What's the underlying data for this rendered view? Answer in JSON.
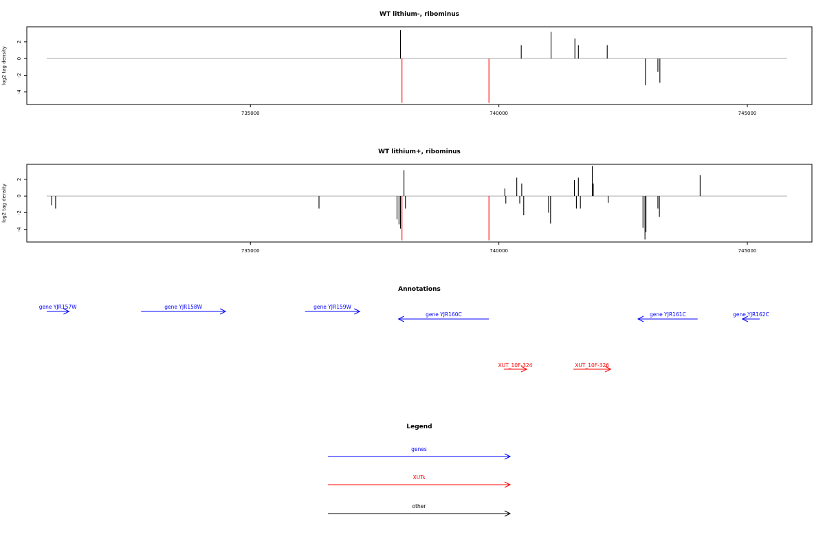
{
  "chart_data": [
    {
      "type": "bar",
      "title": "WT lithium-, ribominus",
      "ylabel": "log2 tag density",
      "xlim": [
        730500,
        746300
      ],
      "ylim": [
        -5.5,
        3.8
      ],
      "xticks": [
        735000,
        740000,
        745000
      ],
      "yticks": [
        -4,
        -2,
        0,
        2
      ],
      "baseline": {
        "x": [
          730900,
          745800
        ],
        "y": 0
      },
      "series": [
        {
          "color": "#000000",
          "bars": [
            {
              "x": 738020,
              "y": 3.4
            },
            {
              "x": 740450,
              "y": 1.6
            },
            {
              "x": 741050,
              "y": 3.2
            },
            {
              "x": 741530,
              "y": 2.4
            },
            {
              "x": 741600,
              "y": 1.6
            },
            {
              "x": 742180,
              "y": 1.6
            },
            {
              "x": 742950,
              "y": -3.2
            },
            {
              "x": 743200,
              "y": -1.6
            },
            {
              "x": 743240,
              "y": -2.9
            }
          ]
        },
        {
          "color": "#ff0000",
          "bars": [
            {
              "x": 738050,
              "y": -5.3
            },
            {
              "x": 739800,
              "y": -5.3
            }
          ]
        }
      ]
    },
    {
      "type": "bar",
      "title": "WT lithium+, ribominus",
      "ylabel": "log2 tag density",
      "xlim": [
        730500,
        746300
      ],
      "ylim": [
        -5.5,
        3.8
      ],
      "xticks": [
        735000,
        740000,
        745000
      ],
      "yticks": [
        -4,
        -2,
        0,
        2
      ],
      "baseline": {
        "x": [
          730900,
          745800
        ],
        "y": 0
      },
      "series": [
        {
          "color": "#000000",
          "bars": [
            {
              "x": 731000,
              "y": -1.1
            },
            {
              "x": 731080,
              "y": -1.5
            },
            {
              "x": 736380,
              "y": -1.5
            },
            {
              "x": 737950,
              "y": -2.8
            },
            {
              "x": 737990,
              "y": -3.4
            },
            {
              "x": 738020,
              "y": -3.9
            },
            {
              "x": 738090,
              "y": 3.1
            },
            {
              "x": 738120,
              "y": -1.5
            },
            {
              "x": 740120,
              "y": 0.9
            },
            {
              "x": 740140,
              "y": -0.9
            },
            {
              "x": 740360,
              "y": 2.2
            },
            {
              "x": 740420,
              "y": -0.9
            },
            {
              "x": 740460,
              "y": 1.5
            },
            {
              "x": 740500,
              "y": -2.3
            },
            {
              "x": 741000,
              "y": -2.0
            },
            {
              "x": 741040,
              "y": -3.3
            },
            {
              "x": 741520,
              "y": 1.9
            },
            {
              "x": 741560,
              "y": -1.5
            },
            {
              "x": 741600,
              "y": 2.2
            },
            {
              "x": 741640,
              "y": -1.5
            },
            {
              "x": 741880,
              "y": 3.6
            },
            {
              "x": 741900,
              "y": 1.5
            },
            {
              "x": 742200,
              "y": -0.8
            },
            {
              "x": 742900,
              "y": -3.8
            },
            {
              "x": 742940,
              "y": -5.2
            },
            {
              "x": 742960,
              "y": -4.3
            },
            {
              "x": 743200,
              "y": -1.5
            },
            {
              "x": 743230,
              "y": -2.5
            },
            {
              "x": 744050,
              "y": 2.5
            }
          ]
        },
        {
          "color": "#ff0000",
          "bars": [
            {
              "x": 738050,
              "y": -5.3
            },
            {
              "x": 739800,
              "y": -5.3
            }
          ]
        }
      ]
    }
  ],
  "annotations": {
    "title": "Annotations",
    "genes_color": "#0000ff",
    "xuts_color": "#ff0000",
    "genes": [
      {
        "label": "gene YJR157W",
        "start": 730900,
        "end": 731350,
        "strand": "+",
        "row": 0
      },
      {
        "label": "gene YJR158W",
        "start": 732800,
        "end": 734500,
        "strand": "+",
        "row": 0
      },
      {
        "label": "gene YJR159W",
        "start": 736100,
        "end": 737200,
        "strand": "+",
        "row": 0
      },
      {
        "label": "gene YJR160C",
        "start": 737980,
        "end": 739800,
        "strand": "-",
        "row": 1
      },
      {
        "label": "gene YJR161C",
        "start": 742800,
        "end": 744000,
        "strand": "-",
        "row": 1
      },
      {
        "label": "gene YJR162C",
        "start": 744900,
        "end": 745250,
        "strand": "-",
        "row": 1
      }
    ],
    "xuts": [
      {
        "label": "XUT_10F-324",
        "start": 740100,
        "end": 740560,
        "strand": "+"
      },
      {
        "label": "XUT_10F-326",
        "start": 741500,
        "end": 742250,
        "strand": "+"
      }
    ]
  },
  "legend": {
    "title": "Legend",
    "items": [
      {
        "label": "genes",
        "color": "#0000ff"
      },
      {
        "label": "XUTs",
        "color": "#ff0000"
      },
      {
        "label": "other",
        "color": "#000000"
      }
    ]
  }
}
